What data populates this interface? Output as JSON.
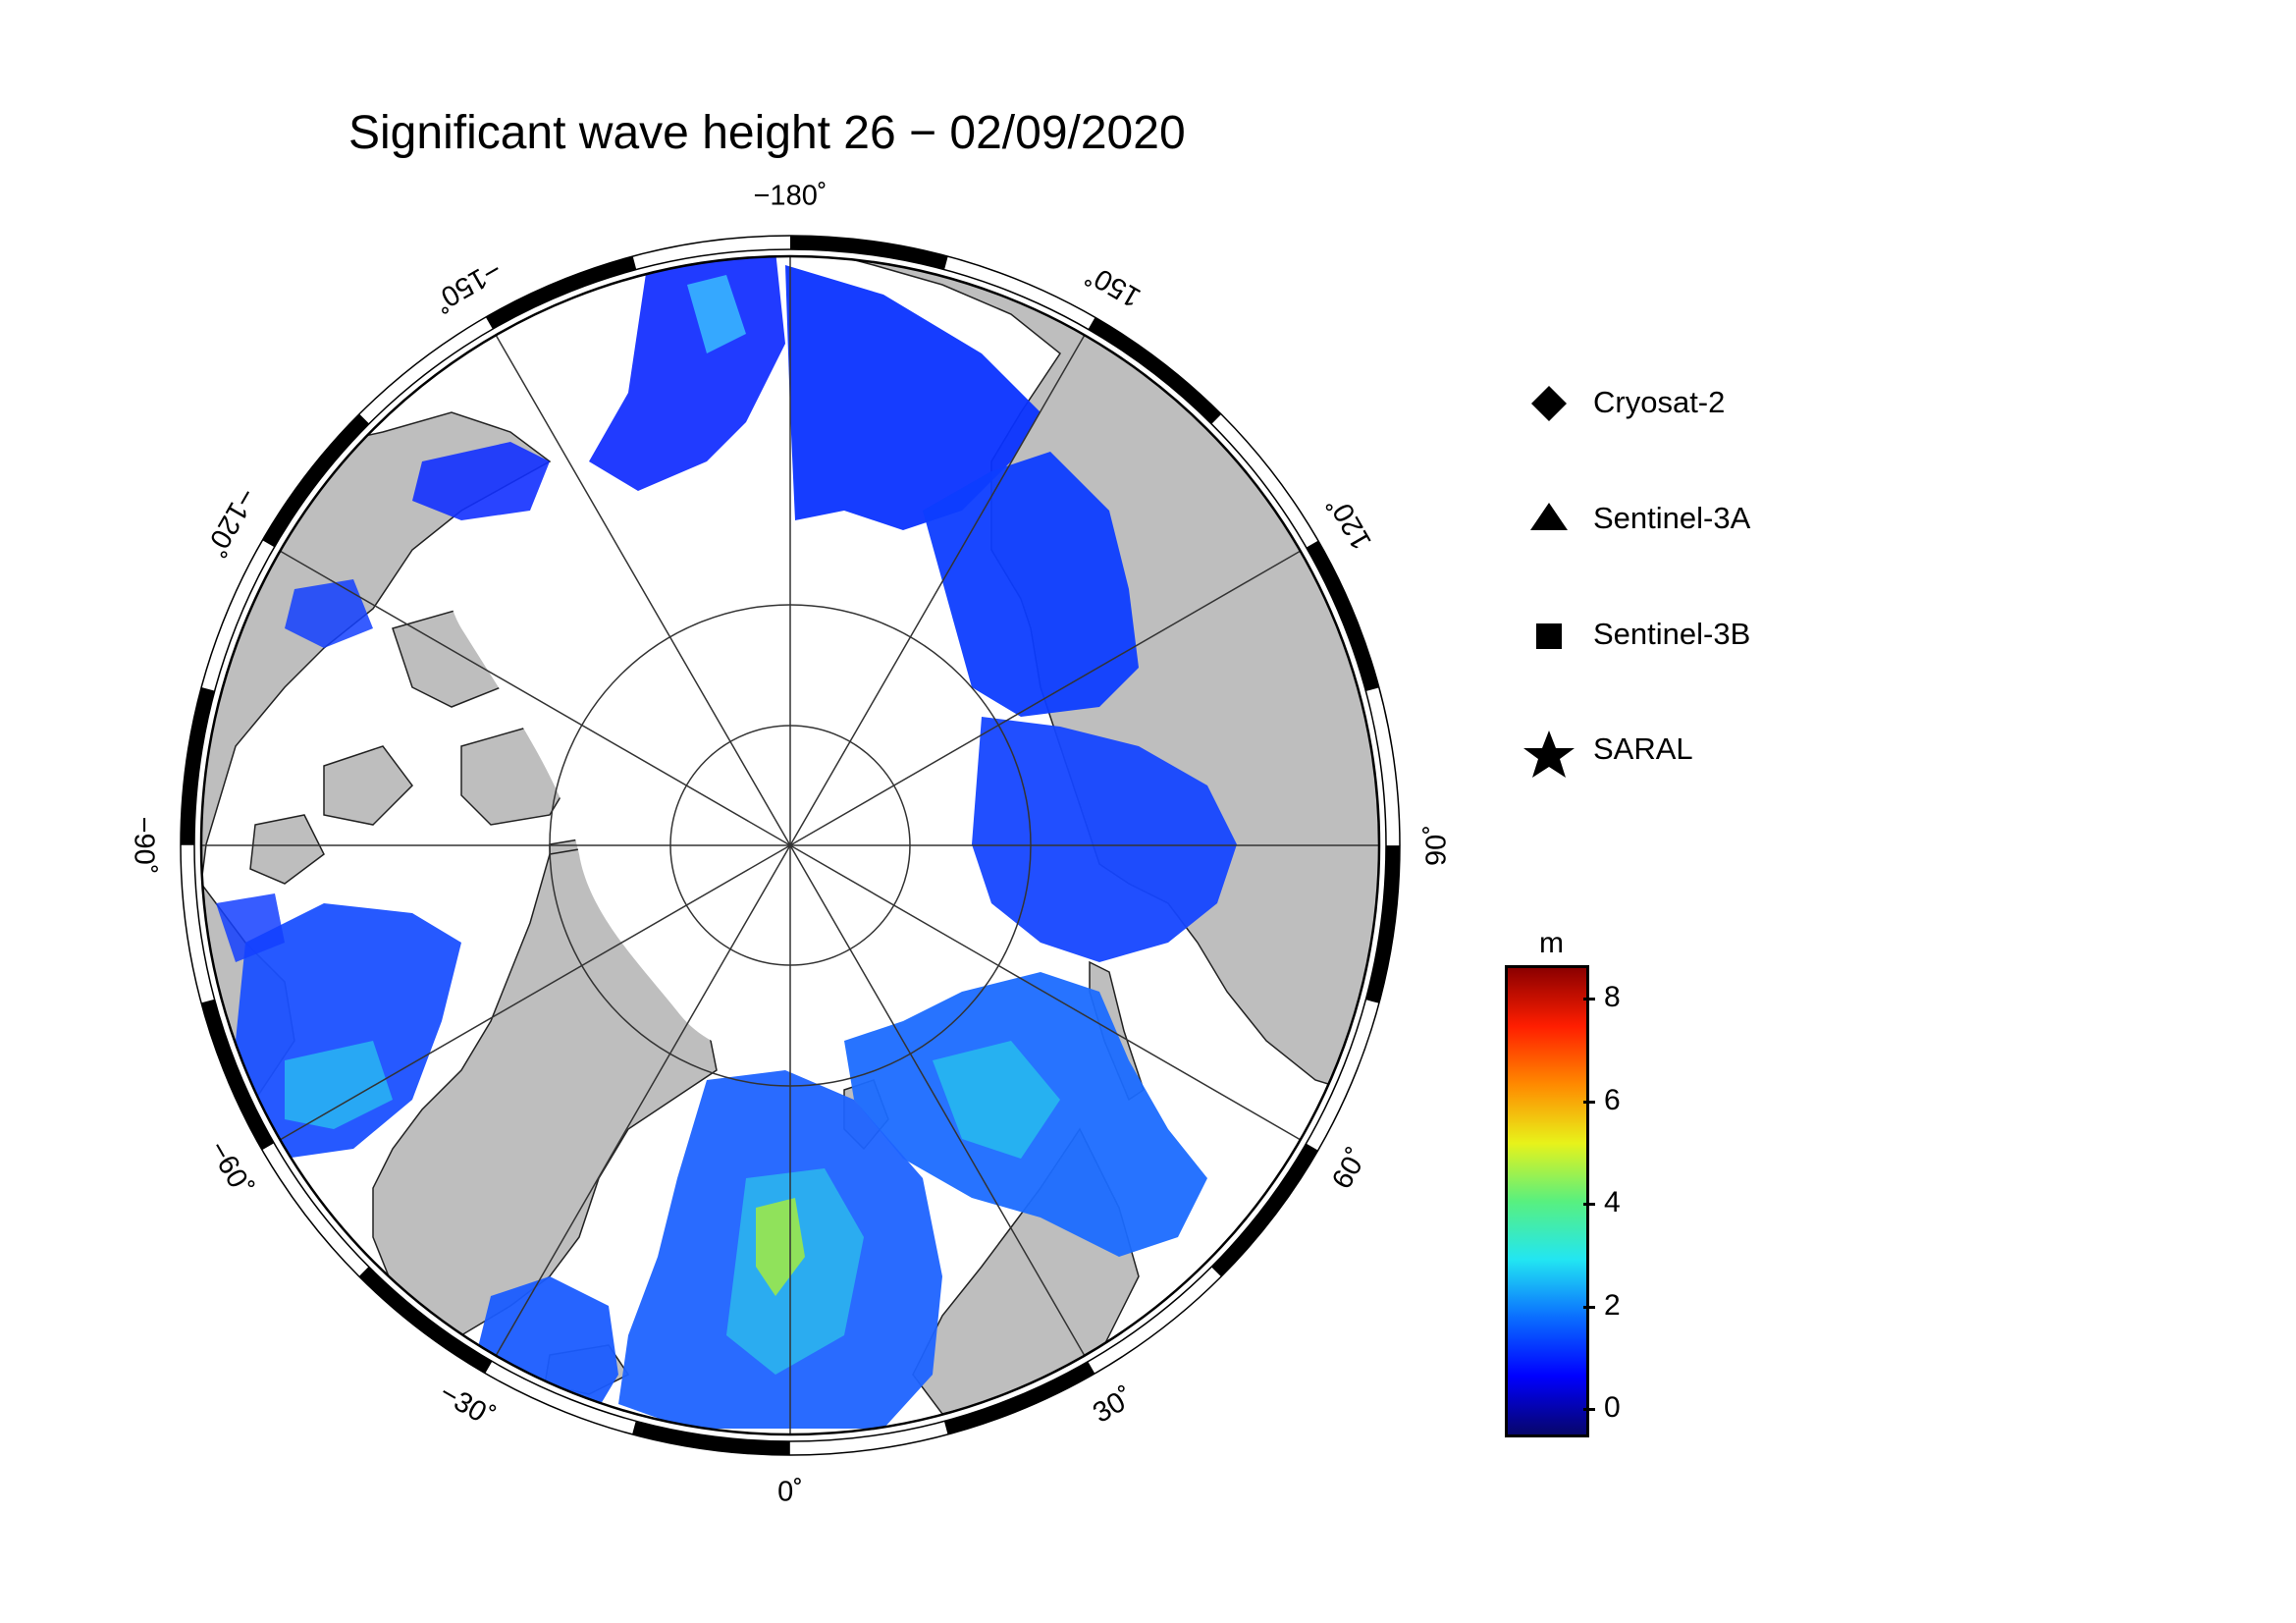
{
  "title": "Significant wave height 26 − 02/09/2020",
  "map": {
    "projection": "north-polar-stereographic",
    "longitude_labels": [
      "−180˚",
      "150˚",
      "120˚",
      "90˚",
      "60˚",
      "30˚",
      "0˚",
      "−30˚",
      "−60˚",
      "−90˚",
      "−120˚",
      "−150˚"
    ],
    "longitudes": [
      180,
      150,
      120,
      90,
      60,
      30,
      0,
      -30,
      -60,
      -90,
      -120,
      -150
    ],
    "colors": {
      "land": "#bebebe",
      "ice": "#ffffff",
      "frame": "#000000"
    }
  },
  "legend": {
    "items": [
      {
        "label": "Cryosat-2",
        "symbol": "diamond"
      },
      {
        "label": "Sentinel-3A",
        "symbol": "triangle"
      },
      {
        "label": "Sentinel-3B",
        "symbol": "square"
      },
      {
        "label": "SARAL",
        "symbol": "star"
      }
    ]
  },
  "colorbar": {
    "unit": "m",
    "ticks": [
      "0",
      "2",
      "4",
      "6",
      "8"
    ],
    "tick_values": [
      0,
      2,
      4,
      6,
      8
    ],
    "range": [
      -0.5,
      8.6
    ],
    "colors": [
      "#07066b",
      "#0000ff",
      "#0a6dff",
      "#22e6f2",
      "#58f07f",
      "#e8f21a",
      "#ff8a00",
      "#ff1e00",
      "#8b0000"
    ]
  }
}
